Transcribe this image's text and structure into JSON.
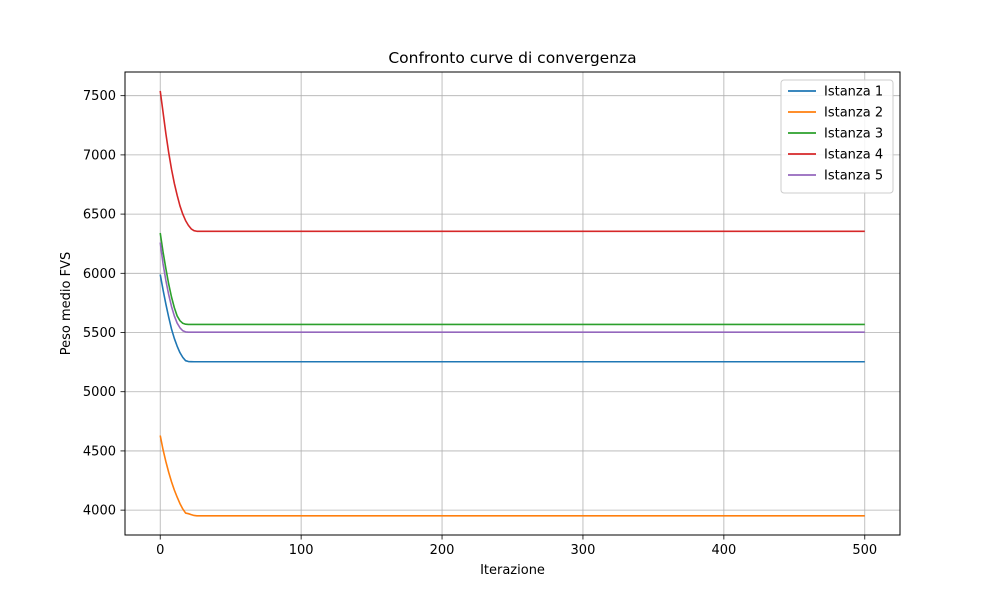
{
  "chart_data": {
    "type": "line",
    "title": "Confronto curve di convergenza",
    "xlabel": "Iterazione",
    "ylabel": "Peso medio FVS",
    "xlim": [
      -25,
      525
    ],
    "ylim": [
      3790,
      7700
    ],
    "xticks": [
      0,
      100,
      200,
      300,
      400,
      500
    ],
    "yticks": [
      4000,
      4500,
      5000,
      5500,
      6000,
      6500,
      7000,
      7500
    ],
    "grid": true,
    "legend_position": "top-right",
    "series": [
      {
        "name": "Istanza 1",
        "color": "#1f77b4",
        "x": [
          0,
          2,
          4,
          6,
          8,
          10,
          12,
          14,
          16,
          18,
          20,
          22,
          24,
          26,
          28,
          30,
          40,
          60,
          100,
          200,
          300,
          400,
          500
        ],
        "y": [
          5990,
          5860,
          5740,
          5630,
          5530,
          5450,
          5385,
          5330,
          5290,
          5262,
          5255,
          5254,
          5253,
          5253,
          5253,
          5253,
          5253,
          5253,
          5253,
          5253,
          5253,
          5253,
          5253
        ]
      },
      {
        "name": "Istanza 2",
        "color": "#ff7f0e",
        "x": [
          0,
          2,
          4,
          6,
          8,
          10,
          12,
          14,
          16,
          18,
          20,
          22,
          24,
          26,
          28,
          30,
          40,
          60,
          100,
          200,
          300,
          400,
          500
        ],
        "y": [
          4630,
          4510,
          4410,
          4320,
          4240,
          4170,
          4110,
          4055,
          4010,
          3975,
          3970,
          3962,
          3955,
          3952,
          3952,
          3952,
          3952,
          3952,
          3952,
          3952,
          3952,
          3952,
          3952
        ]
      },
      {
        "name": "Istanza 3",
        "color": "#2ca02c",
        "x": [
          0,
          2,
          4,
          6,
          8,
          10,
          12,
          14,
          16,
          18,
          20,
          22,
          24,
          26,
          28,
          30,
          40,
          60,
          100,
          200,
          300,
          400,
          500
        ],
        "y": [
          6340,
          6180,
          6040,
          5910,
          5800,
          5710,
          5640,
          5600,
          5578,
          5570,
          5568,
          5568,
          5568,
          5568,
          5568,
          5568,
          5568,
          5568,
          5568,
          5568,
          5568,
          5568,
          5568
        ]
      },
      {
        "name": "Istanza 4",
        "color": "#d62728",
        "x": [
          0,
          2,
          4,
          6,
          8,
          10,
          12,
          14,
          16,
          18,
          20,
          22,
          24,
          26,
          28,
          30,
          40,
          60,
          100,
          200,
          300,
          400,
          500
        ],
        "y": [
          7540,
          7360,
          7180,
          7020,
          6880,
          6760,
          6660,
          6570,
          6500,
          6445,
          6405,
          6375,
          6360,
          6355,
          6355,
          6355,
          6355,
          6355,
          6355,
          6355,
          6355,
          6355,
          6355
        ]
      },
      {
        "name": "Istanza 5",
        "color": "#9467bd",
        "x": [
          0,
          2,
          4,
          6,
          8,
          10,
          12,
          14,
          16,
          18,
          20,
          22,
          24,
          26,
          28,
          30,
          40,
          60,
          100,
          200,
          300,
          400,
          500
        ],
        "y": [
          6260,
          6080,
          5940,
          5820,
          5720,
          5640,
          5580,
          5540,
          5515,
          5505,
          5503,
          5503,
          5503,
          5503,
          5503,
          5503,
          5503,
          5503,
          5503,
          5503,
          5503,
          5503,
          5503
        ]
      }
    ]
  }
}
